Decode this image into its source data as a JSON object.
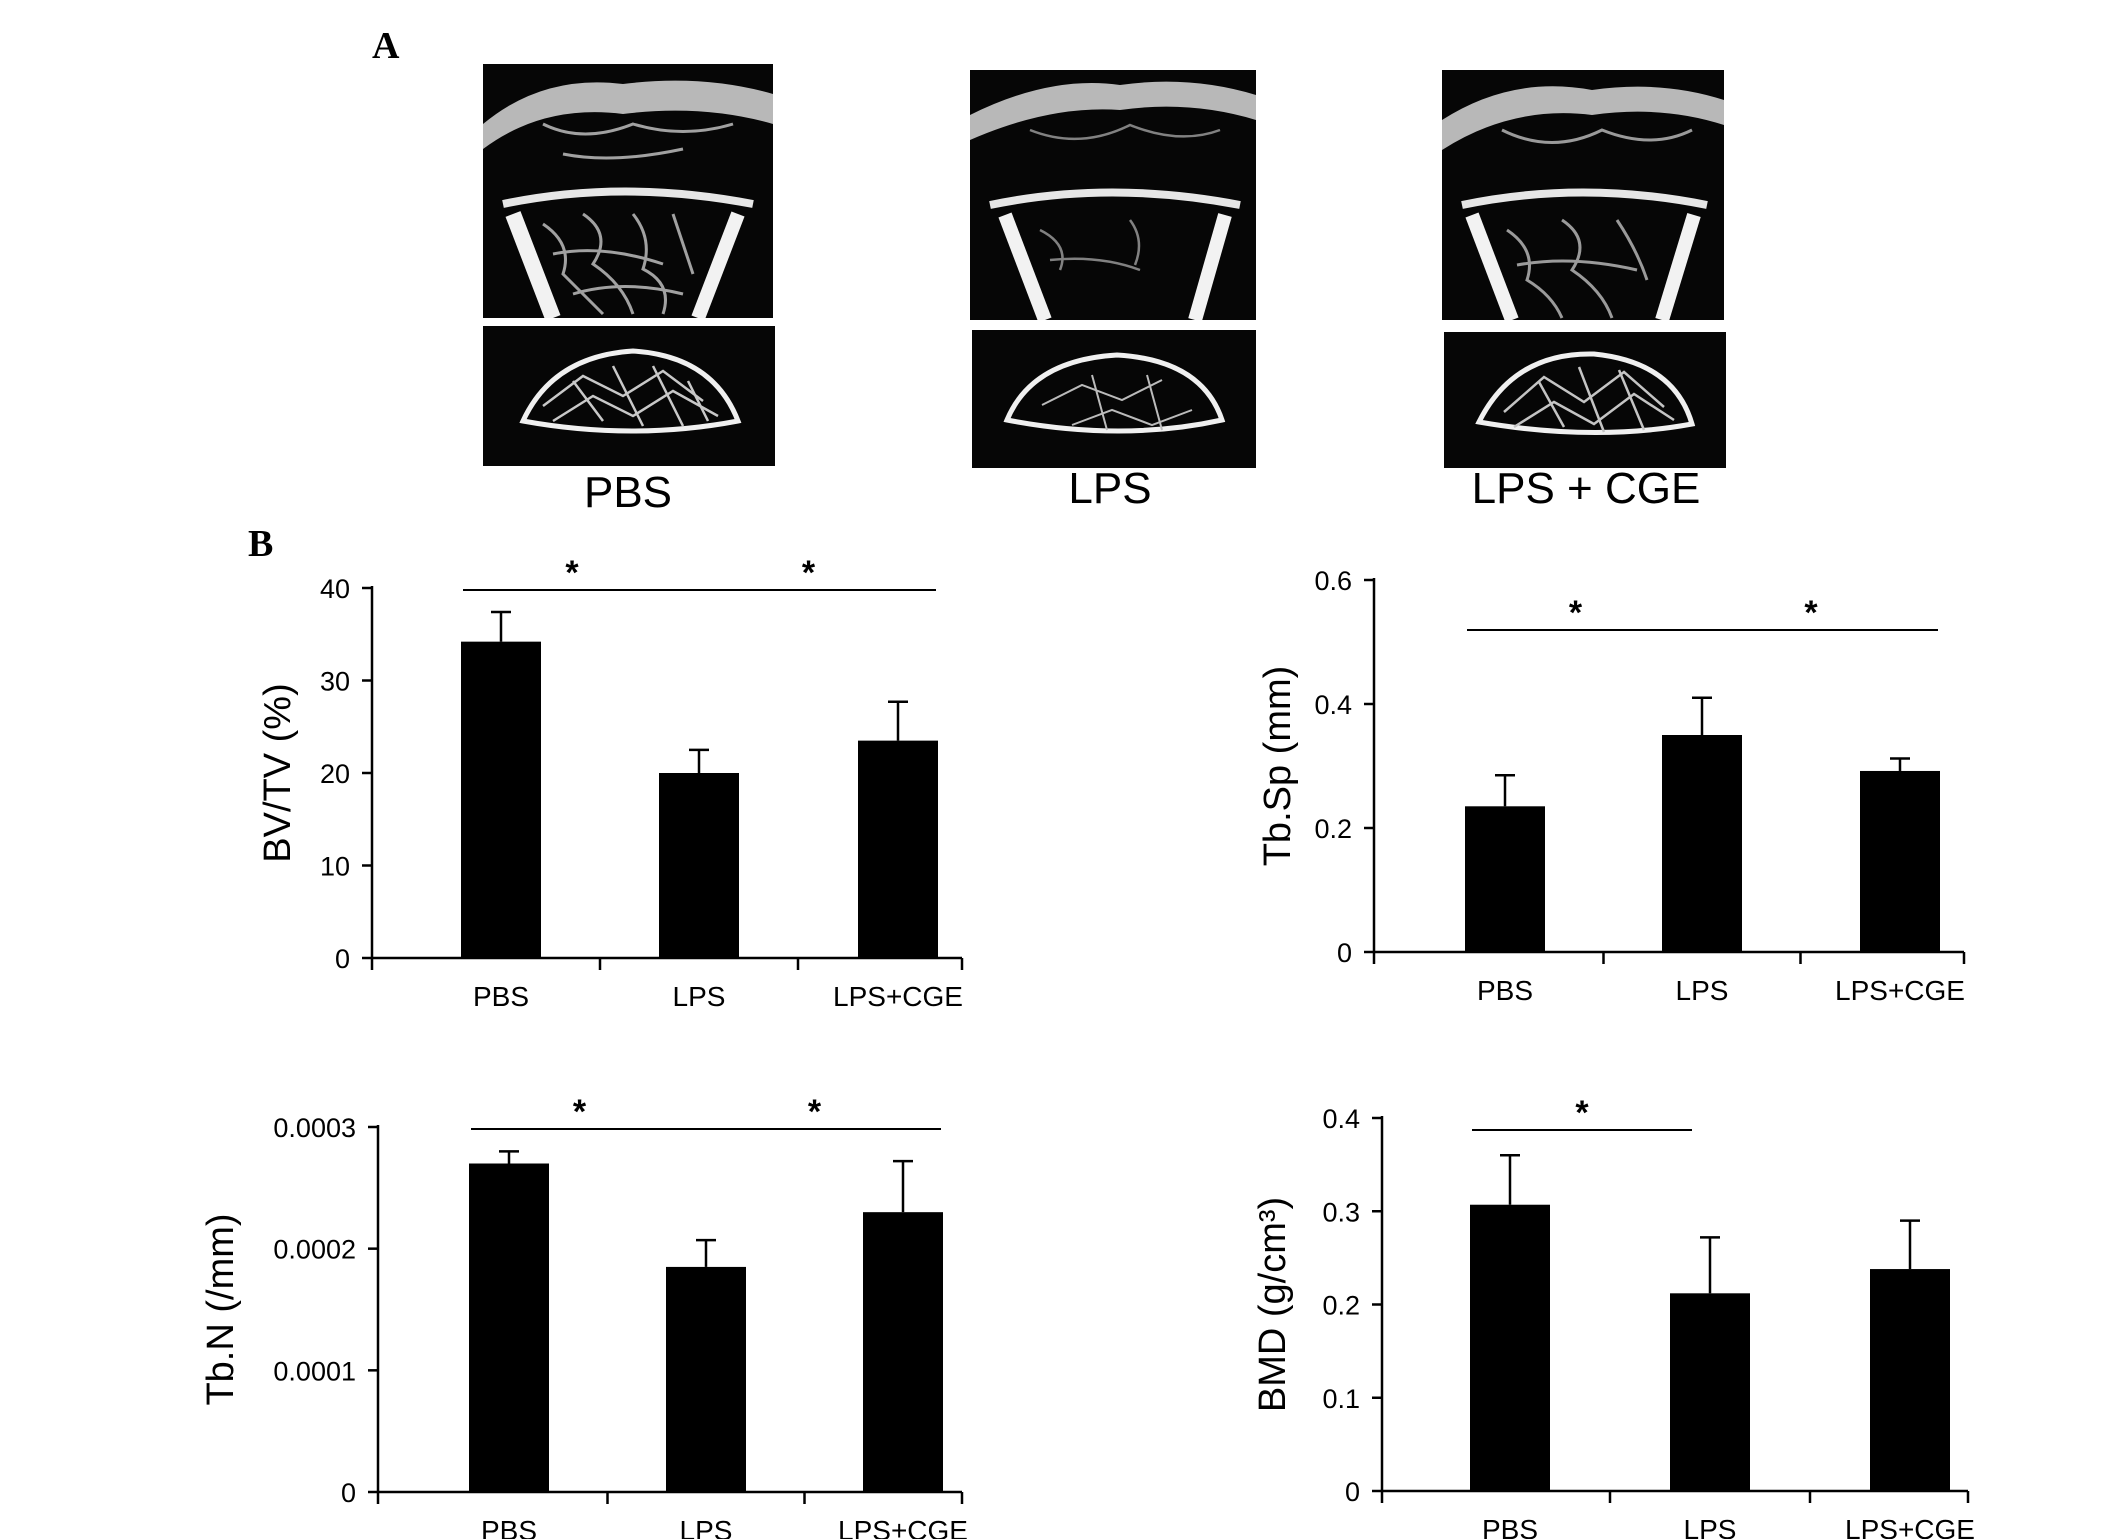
{
  "panels": {
    "a_label": "A",
    "b_label": "B"
  },
  "micro_ct": {
    "images": [
      {
        "label": "PBS"
      },
      {
        "label": "LPS"
      },
      {
        "label": "LPS + CGE"
      }
    ]
  },
  "chart_data": [
    {
      "type": "bar",
      "categories": [
        "PBS",
        "LPS",
        "LPS+CGE"
      ],
      "values": [
        34.2,
        20.0,
        23.5
      ],
      "errors": [
        3.2,
        2.5,
        4.2
      ],
      "ylabel": "BV/TV (%)",
      "ylim": [
        0,
        40
      ],
      "yticks": [
        "0",
        "10",
        "20",
        "30",
        "40"
      ],
      "significance": [
        {
          "from": 0,
          "to": 1,
          "mark": "*"
        },
        {
          "from": 1,
          "to": 2,
          "mark": "*"
        }
      ],
      "bar_color": "#000000"
    },
    {
      "type": "bar",
      "categories": [
        "PBS",
        "LPS",
        "LPS+CGE"
      ],
      "values": [
        0.235,
        0.35,
        0.292
      ],
      "errors": [
        0.05,
        0.06,
        0.02
      ],
      "ylabel": "Tb.Sp (mm)",
      "ylim": [
        0,
        0.6
      ],
      "yticks": [
        "0",
        "0.2",
        "0.4",
        "0.6"
      ],
      "significance": [
        {
          "from": 0,
          "to": 1,
          "mark": "*"
        },
        {
          "from": 1,
          "to": 2,
          "mark": "*"
        }
      ],
      "bar_color": "#000000"
    },
    {
      "type": "bar",
      "categories": [
        "PBS",
        "LPS",
        "LPS+CGE"
      ],
      "values": [
        0.00027,
        0.000185,
        0.00023
      ],
      "errors": [
        1e-05,
        2.2e-05,
        4.2e-05
      ],
      "ylabel": "Tb.N (/mm)",
      "ylim": [
        0,
        0.0003
      ],
      "yticks": [
        "0",
        "0.0001",
        "0.0002",
        "0.0003"
      ],
      "significance": [
        {
          "from": 0,
          "to": 1,
          "mark": "*"
        },
        {
          "from": 1,
          "to": 2,
          "mark": "*"
        }
      ],
      "bar_color": "#000000"
    },
    {
      "type": "bar",
      "categories": [
        "PBS",
        "LPS",
        "LPS+CGE"
      ],
      "values": [
        0.307,
        0.212,
        0.238
      ],
      "errors": [
        0.053,
        0.06,
        0.052
      ],
      "ylabel": "BMD (g/cm³)",
      "ylim": [
        0,
        0.4
      ],
      "yticks": [
        "0",
        "0.1",
        "0.2",
        "0.3",
        "0.4"
      ],
      "significance": [
        {
          "from": 0,
          "to": 1,
          "mark": "*"
        }
      ],
      "bar_color": "#000000"
    }
  ]
}
